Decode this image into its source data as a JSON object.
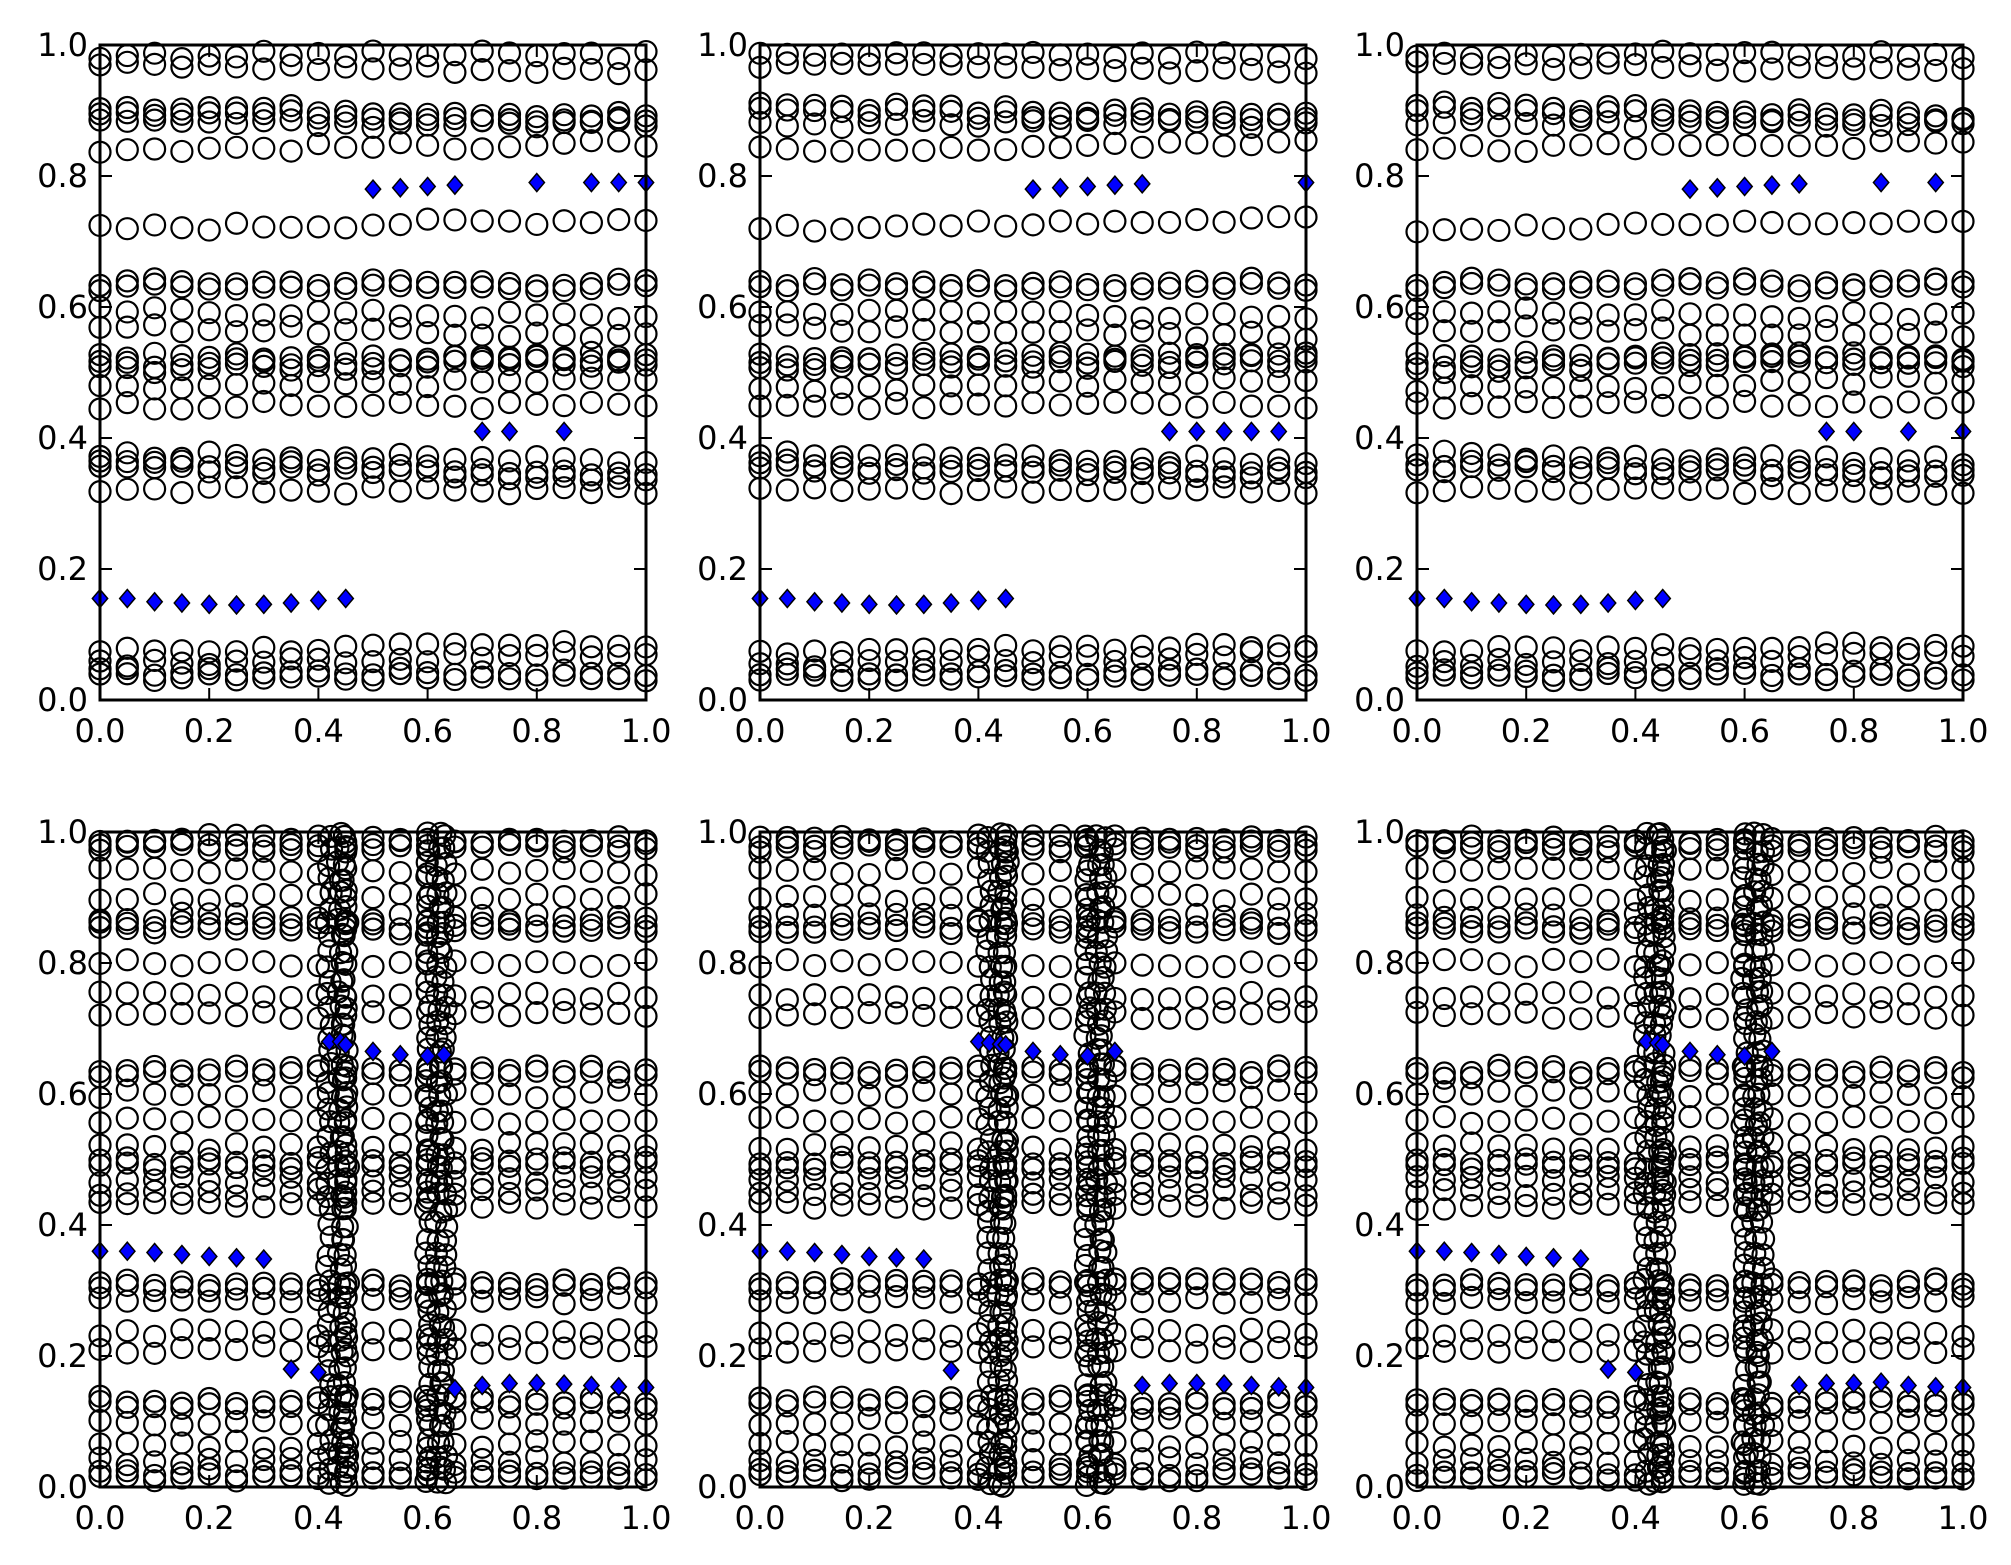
{
  "figure": {
    "layout": "2x3 grid of scatter plots",
    "colors": {
      "circle_edge": "#000000",
      "circle_fill": "none",
      "diamond_fill": "#0000ff",
      "diamond_edge": "#000000",
      "axes": "#000000"
    },
    "circle_rows": {
      "top": [
        0.035,
        0.055,
        0.075,
        0.32,
        0.355,
        0.375,
        0.45,
        0.475,
        0.505,
        0.525,
        0.57,
        0.595,
        0.63,
        0.72,
        0.84,
        0.88,
        0.9,
        0.97,
        0.985
      ],
      "bottom": [
        0.015,
        0.04,
        0.065,
        0.1,
        0.125,
        0.21,
        0.235,
        0.285,
        0.305,
        0.43,
        0.45,
        0.47,
        0.49,
        0.52,
        0.56,
        0.6,
        0.63,
        0.72,
        0.75,
        0.8,
        0.85,
        0.87,
        0.9,
        0.94,
        0.975,
        0.99
      ]
    },
    "circle_x": [
      0.0,
      0.05,
      0.1,
      0.15,
      0.2,
      0.25,
      0.3,
      0.35,
      0.4,
      0.45,
      0.5,
      0.55,
      0.6,
      0.65,
      0.7,
      0.75,
      0.8,
      0.85,
      0.9,
      0.95,
      1.0
    ],
    "dense_columns_bottom": [
      0.42,
      0.44,
      0.45,
      0.6,
      0.62,
      0.63
    ]
  },
  "chart_data": [
    {
      "type": "scatter",
      "panel": "top-left",
      "xlim": [
        0,
        1
      ],
      "ylim": [
        0,
        1
      ],
      "xticks": [
        "0.0",
        "0.2",
        "0.4",
        "0.6",
        "0.8",
        "1.0"
      ],
      "yticks": [
        "0.0",
        "0.2",
        "0.4",
        "0.6",
        "0.8",
        "1.0"
      ],
      "grid": false,
      "diamonds": [
        [
          0.0,
          0.155
        ],
        [
          0.05,
          0.155
        ],
        [
          0.1,
          0.15
        ],
        [
          0.15,
          0.148
        ],
        [
          0.2,
          0.146
        ],
        [
          0.25,
          0.145
        ],
        [
          0.3,
          0.146
        ],
        [
          0.35,
          0.148
        ],
        [
          0.4,
          0.152
        ],
        [
          0.45,
          0.155
        ],
        [
          0.5,
          0.78
        ],
        [
          0.55,
          0.782
        ],
        [
          0.6,
          0.784
        ],
        [
          0.65,
          0.786
        ],
        [
          0.8,
          0.79
        ],
        [
          0.9,
          0.79
        ],
        [
          0.95,
          0.79
        ],
        [
          1.0,
          0.79
        ],
        [
          0.7,
          0.41
        ],
        [
          0.75,
          0.41
        ],
        [
          0.85,
          0.41
        ]
      ]
    },
    {
      "type": "scatter",
      "panel": "top-center",
      "xlim": [
        0,
        1
      ],
      "ylim": [
        0,
        1
      ],
      "xticks": [
        "0.0",
        "0.2",
        "0.4",
        "0.6",
        "0.8",
        "1.0"
      ],
      "yticks": [
        "0.0",
        "0.2",
        "0.4",
        "0.6",
        "0.8",
        "1.0"
      ],
      "grid": false,
      "diamonds": [
        [
          0.0,
          0.155
        ],
        [
          0.05,
          0.155
        ],
        [
          0.1,
          0.15
        ],
        [
          0.15,
          0.148
        ],
        [
          0.2,
          0.146
        ],
        [
          0.25,
          0.145
        ],
        [
          0.3,
          0.146
        ],
        [
          0.35,
          0.148
        ],
        [
          0.4,
          0.152
        ],
        [
          0.45,
          0.155
        ],
        [
          0.5,
          0.78
        ],
        [
          0.55,
          0.782
        ],
        [
          0.6,
          0.784
        ],
        [
          0.65,
          0.786
        ],
        [
          0.7,
          0.788
        ],
        [
          1.0,
          0.79
        ],
        [
          0.75,
          0.41
        ],
        [
          0.8,
          0.41
        ],
        [
          0.85,
          0.41
        ],
        [
          0.9,
          0.41
        ],
        [
          0.95,
          0.41
        ]
      ]
    },
    {
      "type": "scatter",
      "panel": "top-right",
      "xlim": [
        0,
        1
      ],
      "ylim": [
        0,
        1
      ],
      "xticks": [
        "0.0",
        "0.2",
        "0.4",
        "0.6",
        "0.8",
        "1.0"
      ],
      "yticks": [
        "0.0",
        "0.2",
        "0.4",
        "0.6",
        "0.8",
        "1.0"
      ],
      "grid": false,
      "diamonds": [
        [
          0.0,
          0.155
        ],
        [
          0.05,
          0.155
        ],
        [
          0.1,
          0.15
        ],
        [
          0.15,
          0.148
        ],
        [
          0.2,
          0.146
        ],
        [
          0.25,
          0.145
        ],
        [
          0.3,
          0.146
        ],
        [
          0.35,
          0.148
        ],
        [
          0.4,
          0.152
        ],
        [
          0.45,
          0.155
        ],
        [
          0.5,
          0.78
        ],
        [
          0.55,
          0.782
        ],
        [
          0.6,
          0.784
        ],
        [
          0.65,
          0.786
        ],
        [
          0.7,
          0.788
        ],
        [
          0.85,
          0.79
        ],
        [
          0.95,
          0.79
        ],
        [
          0.75,
          0.41
        ],
        [
          0.8,
          0.41
        ],
        [
          0.9,
          0.41
        ],
        [
          1.0,
          0.41
        ]
      ]
    },
    {
      "type": "scatter",
      "panel": "bottom-left",
      "xlim": [
        0,
        1
      ],
      "ylim": [
        0,
        1
      ],
      "xticks": [
        "0.0",
        "0.2",
        "0.4",
        "0.6",
        "0.8",
        "1.0"
      ],
      "yticks": [
        "0.0",
        "0.2",
        "0.4",
        "0.6",
        "0.8",
        "1.0"
      ],
      "grid": false,
      "diamonds": [
        [
          0.0,
          0.36
        ],
        [
          0.05,
          0.36
        ],
        [
          0.1,
          0.358
        ],
        [
          0.15,
          0.355
        ],
        [
          0.2,
          0.352
        ],
        [
          0.25,
          0.35
        ],
        [
          0.3,
          0.348
        ],
        [
          0.35,
          0.18
        ],
        [
          0.4,
          0.175
        ],
        [
          0.42,
          0.68
        ],
        [
          0.44,
          0.68
        ],
        [
          0.45,
          0.675
        ],
        [
          0.5,
          0.665
        ],
        [
          0.55,
          0.66
        ],
        [
          0.6,
          0.658
        ],
        [
          0.63,
          0.66
        ],
        [
          0.65,
          0.15
        ],
        [
          0.7,
          0.155
        ],
        [
          0.75,
          0.158
        ],
        [
          0.8,
          0.158
        ],
        [
          0.85,
          0.157
        ],
        [
          0.9,
          0.155
        ],
        [
          0.95,
          0.153
        ],
        [
          1.0,
          0.152
        ]
      ]
    },
    {
      "type": "scatter",
      "panel": "bottom-center",
      "xlim": [
        0,
        1
      ],
      "ylim": [
        0,
        1
      ],
      "xticks": [
        "0.0",
        "0.2",
        "0.4",
        "0.6",
        "0.8",
        "1.0"
      ],
      "yticks": [
        "0.0",
        "0.2",
        "0.4",
        "0.6",
        "0.8",
        "1.0"
      ],
      "grid": false,
      "diamonds": [
        [
          0.0,
          0.36
        ],
        [
          0.05,
          0.36
        ],
        [
          0.1,
          0.358
        ],
        [
          0.15,
          0.355
        ],
        [
          0.2,
          0.352
        ],
        [
          0.25,
          0.35
        ],
        [
          0.3,
          0.348
        ],
        [
          0.35,
          0.178
        ],
        [
          0.4,
          0.68
        ],
        [
          0.42,
          0.678
        ],
        [
          0.44,
          0.676
        ],
        [
          0.45,
          0.675
        ],
        [
          0.5,
          0.665
        ],
        [
          0.55,
          0.66
        ],
        [
          0.6,
          0.658
        ],
        [
          0.65,
          0.665
        ],
        [
          0.7,
          0.155
        ],
        [
          0.75,
          0.158
        ],
        [
          0.8,
          0.158
        ],
        [
          0.85,
          0.157
        ],
        [
          0.9,
          0.155
        ],
        [
          0.95,
          0.153
        ],
        [
          1.0,
          0.152
        ]
      ]
    },
    {
      "type": "scatter",
      "panel": "bottom-right",
      "xlim": [
        0,
        1
      ],
      "ylim": [
        0,
        1
      ],
      "xticks": [
        "0.0",
        "0.2",
        "0.4",
        "0.6",
        "0.8",
        "1.0"
      ],
      "yticks": [
        "0.0",
        "0.2",
        "0.4",
        "0.6",
        "0.8",
        "1.0"
      ],
      "grid": false,
      "diamonds": [
        [
          0.0,
          0.36
        ],
        [
          0.05,
          0.36
        ],
        [
          0.1,
          0.358
        ],
        [
          0.15,
          0.355
        ],
        [
          0.2,
          0.352
        ],
        [
          0.25,
          0.35
        ],
        [
          0.3,
          0.348
        ],
        [
          0.35,
          0.18
        ],
        [
          0.4,
          0.175
        ],
        [
          0.42,
          0.68
        ],
        [
          0.44,
          0.678
        ],
        [
          0.45,
          0.675
        ],
        [
          0.5,
          0.665
        ],
        [
          0.55,
          0.66
        ],
        [
          0.6,
          0.658
        ],
        [
          0.65,
          0.665
        ],
        [
          0.7,
          0.155
        ],
        [
          0.75,
          0.158
        ],
        [
          0.8,
          0.158
        ],
        [
          0.85,
          0.16
        ],
        [
          0.9,
          0.155
        ],
        [
          0.95,
          0.153
        ],
        [
          1.0,
          0.152
        ]
      ]
    }
  ]
}
